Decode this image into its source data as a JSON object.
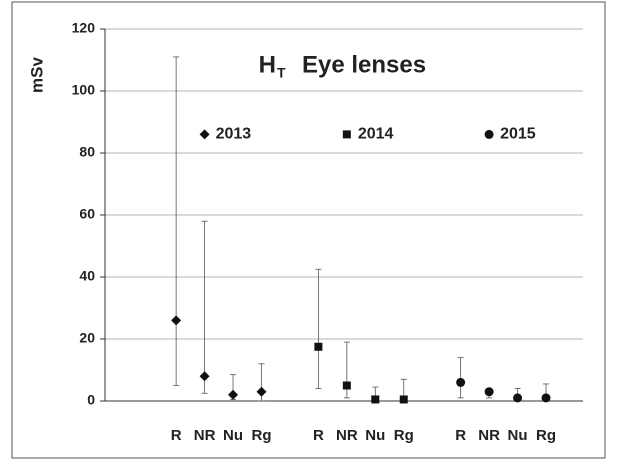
{
  "chart_data": {
    "type": "range-dot",
    "title": {
      "symbol": "H",
      "subscript": "T",
      "text": "Eye lenses"
    },
    "ylabel": "mSv",
    "categories": [
      "R",
      "NR",
      "Nu",
      "Rg"
    ],
    "ylim": [
      0,
      120
    ],
    "yticks": [
      0,
      20,
      40,
      60,
      80,
      100,
      120
    ],
    "grid": true,
    "series": [
      {
        "name": "2013",
        "marker": "diamond",
        "color": "#111111",
        "values": [
          26,
          8,
          2,
          3
        ],
        "low": [
          5,
          2.5,
          0.5,
          0
        ],
        "high": [
          111,
          58,
          8.5,
          12
        ]
      },
      {
        "name": "2014",
        "marker": "square",
        "color": "#111111",
        "values": [
          17.5,
          5,
          0.5,
          0.5
        ],
        "low": [
          4,
          1,
          0,
          0
        ],
        "high": [
          42.5,
          19,
          4.5,
          7
        ]
      },
      {
        "name": "2015",
        "marker": "circle",
        "color": "#111111",
        "values": [
          6,
          3,
          1,
          1
        ],
        "low": [
          1,
          1,
          0,
          0
        ],
        "high": [
          14,
          3.5,
          4,
          5.5
        ]
      }
    ]
  }
}
